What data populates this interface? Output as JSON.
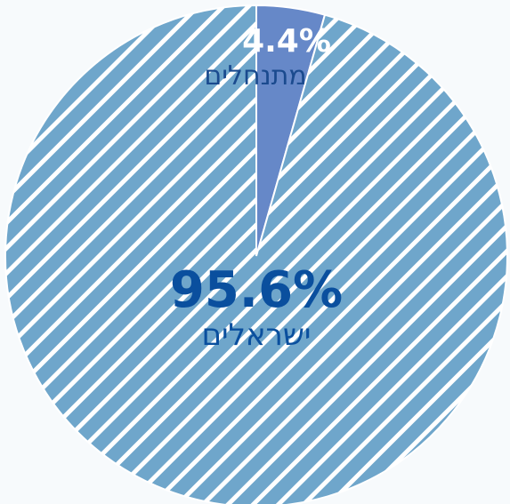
{
  "chart_data": {
    "type": "pie",
    "slices": [
      {
        "name": "ישראלים",
        "value": 95.6,
        "value_label": "95.6%",
        "color": "#6fa6cb",
        "pattern": "diagonal-white-stripes"
      },
      {
        "name": "מתנחלים",
        "value": 4.4,
        "value_label": "4.4%",
        "color": "#6688c8",
        "pattern": "solid"
      }
    ],
    "start_angle": "12 o'clock",
    "direction": "clockwise",
    "legend": "none",
    "label_colors": {
      "major_value": "#0a4f9e",
      "major_name": "#0a4f9e",
      "minor_value": "#ffffff",
      "minor_name": "#1a4a8e"
    }
  }
}
